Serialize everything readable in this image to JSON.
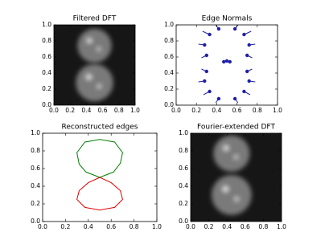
{
  "chart_data": [
    {
      "type": "image",
      "title": "Filtered DFT",
      "xlim": [
        0,
        1
      ],
      "ylim": [
        0,
        1
      ],
      "xticks": [
        {
          "value": 0,
          "label": "0.0"
        },
        {
          "value": 0.2,
          "label": "0.2"
        },
        {
          "value": 0.4,
          "label": "0.4"
        },
        {
          "value": 0.6,
          "label": "0.6"
        },
        {
          "value": 0.8,
          "label": "0.8"
        },
        {
          "value": 1,
          "label": "1.0"
        }
      ],
      "yticks": [
        {
          "value": 0,
          "label": "0.0"
        },
        {
          "value": 0.2,
          "label": "0.2"
        },
        {
          "value": 0.4,
          "label": "0.4"
        },
        {
          "value": 0.6,
          "label": "0.6"
        },
        {
          "value": 0.8,
          "label": "0.8"
        },
        {
          "value": 1,
          "label": "1.0"
        }
      ]
    },
    {
      "type": "scatter",
      "title": "Edge Normals",
      "xlim": [
        0,
        1
      ],
      "ylim": [
        0,
        1
      ],
      "xticks": [
        {
          "value": 0,
          "label": "0.0"
        },
        {
          "value": 0.2,
          "label": "0.2"
        },
        {
          "value": 0.4,
          "label": "0.4"
        },
        {
          "value": 0.6,
          "label": "0.6"
        },
        {
          "value": 0.8,
          "label": "0.8"
        },
        {
          "value": 1,
          "label": "1.0"
        }
      ],
      "yticks": [
        {
          "value": 0,
          "label": "0.0"
        },
        {
          "value": 0.2,
          "label": "0.2"
        },
        {
          "value": 0.4,
          "label": "0.4"
        },
        {
          "value": 0.6,
          "label": "0.6"
        },
        {
          "value": 0.8,
          "label": "0.8"
        },
        {
          "value": 1,
          "label": "1.0"
        }
      ],
      "series": [
        {
          "color": "#1f1fa8",
          "x": [
            0.42,
            0.58,
            0.33,
            0.67,
            0.28,
            0.72,
            0.3,
            0.7,
            0.3,
            0.7,
            0.28,
            0.72,
            0.33,
            0.67,
            0.42,
            0.58,
            0.47,
            0.5,
            0.53
          ],
          "values": [
            0.95,
            0.95,
            0.88,
            0.88,
            0.75,
            0.75,
            0.62,
            0.62,
            0.42,
            0.42,
            0.3,
            0.3,
            0.17,
            0.17,
            0.08,
            0.08,
            0.54,
            0.55,
            0.54
          ],
          "u": [
            -0.03,
            0.03,
            -0.07,
            0.07,
            -0.06,
            0.06,
            -0.05,
            0.05,
            -0.05,
            0.05,
            -0.06,
            0.06,
            -0.06,
            0.06,
            -0.03,
            0.03,
            0,
            0,
            0
          ],
          "v": [
            0.05,
            0.05,
            0.04,
            0.04,
            0.01,
            0.01,
            -0.03,
            -0.03,
            0.03,
            0.03,
            -0.01,
            -0.01,
            -0.04,
            -0.04,
            -0.05,
            -0.05,
            0,
            0,
            0
          ]
        }
      ]
    },
    {
      "type": "line",
      "title": "Reconstructed edges",
      "xlim": [
        0,
        1
      ],
      "ylim": [
        0,
        1
      ],
      "xticks": [
        {
          "value": 0,
          "label": "0.0"
        },
        {
          "value": 0.2,
          "label": "0.2"
        },
        {
          "value": 0.4,
          "label": "0.4"
        },
        {
          "value": 0.6,
          "label": "0.6"
        },
        {
          "value": 0.8,
          "label": "0.8"
        },
        {
          "value": 1,
          "label": "1.0"
        }
      ],
      "yticks": [
        {
          "value": 0,
          "label": "0.0"
        },
        {
          "value": 0.2,
          "label": "0.2"
        },
        {
          "value": 0.4,
          "label": "0.4"
        },
        {
          "value": 0.6,
          "label": "0.6"
        },
        {
          "value": 0.8,
          "label": "0.8"
        },
        {
          "value": 1,
          "label": "1.0"
        }
      ],
      "series": [
        {
          "color": "#007f00",
          "x": [
            0.5,
            0.62,
            0.68,
            0.7,
            0.63,
            0.5,
            0.37,
            0.3,
            0.32,
            0.38,
            0.5
          ],
          "values": [
            0.5,
            0.56,
            0.66,
            0.78,
            0.9,
            0.93,
            0.9,
            0.78,
            0.65,
            0.56,
            0.5
          ]
        },
        {
          "color": "#e00000",
          "x": [
            0.5,
            0.6,
            0.68,
            0.7,
            0.63,
            0.5,
            0.37,
            0.3,
            0.32,
            0.4,
            0.5
          ],
          "values": [
            0.5,
            0.44,
            0.35,
            0.25,
            0.16,
            0.13,
            0.16,
            0.25,
            0.35,
            0.44,
            0.5
          ]
        }
      ]
    },
    {
      "type": "image",
      "title": "Fourier-extended DFT",
      "xlim": [
        0,
        1
      ],
      "ylim": [
        0,
        1
      ],
      "xticks": [
        {
          "value": 0,
          "label": "0.0"
        },
        {
          "value": 0.2,
          "label": "0.2"
        },
        {
          "value": 0.4,
          "label": "0.4"
        },
        {
          "value": 0.6,
          "label": "0.6"
        },
        {
          "value": 0.8,
          "label": "0.8"
        },
        {
          "value": 1,
          "label": "1.0"
        }
      ],
      "yticks": [
        {
          "value": 0,
          "label": "0.0"
        },
        {
          "value": 0.2,
          "label": "0.2"
        },
        {
          "value": 0.4,
          "label": "0.4"
        },
        {
          "value": 0.6,
          "label": "0.6"
        },
        {
          "value": 0.8,
          "label": "0.8"
        },
        {
          "value": 1,
          "label": "1.0"
        }
      ]
    }
  ]
}
